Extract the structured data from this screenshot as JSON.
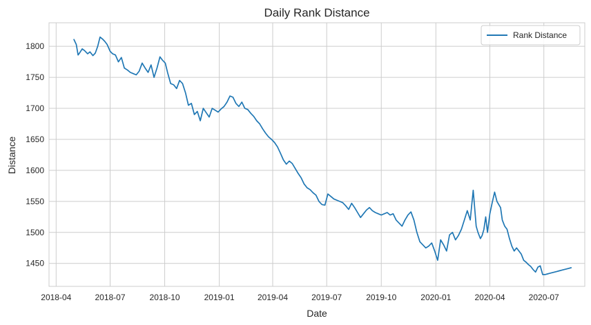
{
  "chart_data": {
    "type": "line",
    "title": "Daily Rank Distance",
    "xlabel": "Date",
    "ylabel": "Distance",
    "xlim": [
      "2018-03-20",
      "2020-09-08"
    ],
    "ylim": [
      1413,
      1838
    ],
    "x_ticks": [
      "2018-04",
      "2018-07",
      "2018-10",
      "2019-01",
      "2019-04",
      "2019-07",
      "2019-10",
      "2020-01",
      "2020-04",
      "2020-07"
    ],
    "x_tick_dates": [
      "2018-04-01",
      "2018-07-01",
      "2018-10-01",
      "2019-01-01",
      "2019-04-01",
      "2019-07-01",
      "2019-10-01",
      "2020-01-01",
      "2020-04-01",
      "2020-07-01"
    ],
    "y_ticks": [
      1450,
      1500,
      1550,
      1600,
      1650,
      1700,
      1750,
      1800
    ],
    "grid": true,
    "legend": "top-right",
    "colors": {
      "line": "#1f77b4",
      "grid": "#cccccc",
      "spine": "#cccccc",
      "background": "#ffffff"
    },
    "series": [
      {
        "name": "Rank Distance",
        "x": [
          "2018-05-01",
          "2018-05-05",
          "2018-05-08",
          "2018-05-11",
          "2018-05-15",
          "2018-05-19",
          "2018-05-24",
          "2018-05-28",
          "2018-06-02",
          "2018-06-06",
          "2018-06-10",
          "2018-06-14",
          "2018-06-18",
          "2018-06-22",
          "2018-06-26",
          "2018-07-01",
          "2018-07-05",
          "2018-07-10",
          "2018-07-15",
          "2018-07-20",
          "2018-07-25",
          "2018-07-30",
          "2018-08-04",
          "2018-08-09",
          "2018-08-14",
          "2018-08-19",
          "2018-08-24",
          "2018-08-29",
          "2018-09-03",
          "2018-09-08",
          "2018-09-13",
          "2018-09-18",
          "2018-09-23",
          "2018-09-27",
          "2018-10-02",
          "2018-10-06",
          "2018-10-11",
          "2018-10-16",
          "2018-10-21",
          "2018-10-26",
          "2018-10-31",
          "2018-11-05",
          "2018-11-10",
          "2018-11-15",
          "2018-11-20",
          "2018-11-25",
          "2018-11-30",
          "2018-12-05",
          "2018-12-10",
          "2018-12-15",
          "2018-12-20",
          "2018-12-25",
          "2018-12-30",
          "2019-01-04",
          "2019-01-09",
          "2019-01-14",
          "2019-01-19",
          "2019-01-24",
          "2019-01-29",
          "2019-02-03",
          "2019-02-08",
          "2019-02-13",
          "2019-02-18",
          "2019-02-23",
          "2019-02-28",
          "2019-03-05",
          "2019-03-10",
          "2019-03-15",
          "2019-03-20",
          "2019-03-25",
          "2019-03-30",
          "2019-04-04",
          "2019-04-09",
          "2019-04-14",
          "2019-04-19",
          "2019-04-24",
          "2019-04-29",
          "2019-05-04",
          "2019-05-09",
          "2019-05-14",
          "2019-05-19",
          "2019-05-24",
          "2019-05-29",
          "2019-06-03",
          "2019-06-08",
          "2019-06-13",
          "2019-06-18",
          "2019-06-23",
          "2019-06-28",
          "2019-07-03",
          "2019-07-08",
          "2019-07-13",
          "2019-07-18",
          "2019-07-23",
          "2019-07-28",
          "2019-08-02",
          "2019-08-07",
          "2019-08-12",
          "2019-08-17",
          "2019-08-22",
          "2019-08-27",
          "2019-09-01",
          "2019-09-06",
          "2019-09-11",
          "2019-09-16",
          "2019-09-21",
          "2019-09-26",
          "2019-10-01",
          "2019-10-06",
          "2019-10-11",
          "2019-10-16",
          "2019-10-21",
          "2019-10-26",
          "2019-10-31",
          "2019-11-05",
          "2019-11-10",
          "2019-11-15",
          "2019-11-20",
          "2019-11-25",
          "2019-11-30",
          "2019-12-05",
          "2019-12-10",
          "2019-12-15",
          "2019-12-20",
          "2019-12-25",
          "2019-12-30",
          "2020-01-04",
          "2020-01-09",
          "2020-01-14",
          "2020-01-19",
          "2020-01-24",
          "2020-01-29",
          "2020-02-03",
          "2020-02-08",
          "2020-02-13",
          "2020-02-18",
          "2020-02-23",
          "2020-02-28",
          "2020-03-04",
          "2020-03-09",
          "2020-03-12",
          "2020-03-16",
          "2020-03-19",
          "2020-03-22",
          "2020-03-25",
          "2020-03-28",
          "2020-04-01",
          "2020-04-05",
          "2020-04-09",
          "2020-04-13",
          "2020-04-16",
          "2020-04-19",
          "2020-04-22",
          "2020-04-26",
          "2020-04-30",
          "2020-05-04",
          "2020-05-08",
          "2020-05-12",
          "2020-05-16",
          "2020-05-20",
          "2020-05-24",
          "2020-05-28",
          "2020-06-01",
          "2020-06-05",
          "2020-06-09",
          "2020-06-13",
          "2020-06-17",
          "2020-06-21",
          "2020-06-25",
          "2020-06-29",
          "2020-07-03",
          "2020-07-07",
          "2020-07-11",
          "2020-07-15",
          "2020-07-19",
          "2020-07-23",
          "2020-07-27",
          "2020-07-31",
          "2020-08-04",
          "2020-08-08",
          "2020-08-12",
          "2020-08-16"
        ],
        "values": [
          1811,
          1803,
          1786,
          1790,
          1796,
          1793,
          1788,
          1791,
          1785,
          1789,
          1800,
          1815,
          1812,
          1808,
          1803,
          1792,
          1788,
          1786,
          1775,
          1782,
          1765,
          1762,
          1758,
          1756,
          1754,
          1760,
          1773,
          1765,
          1758,
          1770,
          1750,
          1765,
          1783,
          1778,
          1773,
          1757,
          1740,
          1738,
          1732,
          1745,
          1740,
          1725,
          1705,
          1708,
          1690,
          1695,
          1680,
          1700,
          1693,
          1686,
          1700,
          1697,
          1694,
          1699,
          1703,
          1710,
          1720,
          1718,
          1708,
          1703,
          1710,
          1700,
          1698,
          1692,
          1687,
          1680,
          1675,
          1667,
          1660,
          1654,
          1650,
          1645,
          1638,
          1628,
          1617,
          1610,
          1615,
          1611,
          1603,
          1595,
          1588,
          1578,
          1572,
          1569,
          1564,
          1560,
          1550,
          1545,
          1544,
          1562,
          1558,
          1554,
          1552,
          1550,
          1548,
          1543,
          1537,
          1547,
          1540,
          1532,
          1524,
          1530,
          1536,
          1540,
          1535,
          1532,
          1530,
          1528,
          1530,
          1532,
          1528,
          1530,
          1520,
          1515,
          1510,
          1520,
          1528,
          1533,
          1520,
          1500,
          1485,
          1480,
          1475,
          1478,
          1483,
          1470,
          1455,
          1488,
          1480,
          1470,
          1496,
          1500,
          1488,
          1495,
          1505,
          1520,
          1535,
          1520,
          1568,
          1510,
          1500,
          1490,
          1495,
          1505,
          1525,
          1500,
          1530,
          1548,
          1565,
          1550,
          1545,
          1540,
          1520,
          1510,
          1505,
          1490,
          1478,
          1470,
          1475,
          1470,
          1465,
          1455,
          1452,
          1448,
          1445,
          1440,
          1436,
          1444,
          1446,
          1432,
          1432,
          1433,
          1434,
          1435,
          1436,
          1437,
          1438,
          1439,
          1440,
          1441,
          1442,
          1443
        ]
      }
    ]
  }
}
